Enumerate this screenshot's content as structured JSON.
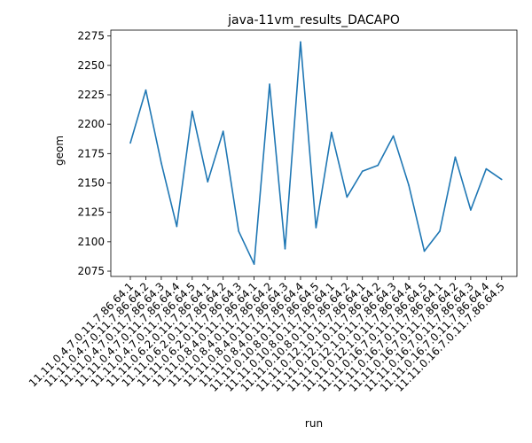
{
  "chart_data": {
    "type": "line",
    "title": "java-11vm_results_DACAPO",
    "xlabel": "run",
    "ylabel": "geom",
    "categories": [
      "11.11.0.4.7.0.11.7.86.64.1",
      "11.11.0.4.7.0.11.7.86.64.2",
      "11.11.0.4.7.0.11.7.86.64.3",
      "11.11.0.4.7.0.11.7.86.64.4",
      "11.11.0.4.7.0.11.7.86.64.5",
      "11.11.0.6.2.0.11.7.86.64.1",
      "11.11.0.6.2.0.11.7.86.64.2",
      "11.11.0.6.2.0.11.7.86.64.3",
      "11.11.0.8.4.0.11.7.86.64.1",
      "11.11.0.8.4.0.11.7.86.64.2",
      "11.11.0.8.4.0.11.7.86.64.3",
      "11.11.0.8.4.0.11.7.86.64.4",
      "11.11.0.10.8.0.11.7.86.64.5",
      "11.11.0.10.8.0.11.7.86.64.1",
      "11.11.0.10.8.0.11.7.86.64.2",
      "11.11.0.12.1.0.11.7.86.64.1",
      "11.11.0.12.1.0.11.7.86.64.2",
      "11.11.0.12.1.0.11.7.86.64.3",
      "11.11.0.12.1.0.11.7.86.64.4",
      "11.11.0.16.7.0.11.7.86.64.5",
      "11.11.0.16.7.0.11.7.86.64.1",
      "11.11.0.16.7.0.11.7.86.64.2",
      "11.11.0.16.7.0.11.7.86.64.3",
      "11.11.0.16.7.0.11.7.86.64.4",
      "11.11.0.16.7.0.11.7.86.64.5"
    ],
    "values": [
      2184,
      2229,
      2167,
      2113,
      2211,
      2151,
      2194,
      2109,
      2081,
      2234,
      2094,
      2270,
      2112,
      2193,
      2138,
      2160,
      2165,
      2190,
      2148,
      2092,
      2109,
      2172,
      2127,
      2162,
      2153
    ],
    "yticks": [
      2075,
      2100,
      2125,
      2150,
      2175,
      2200,
      2225,
      2250,
      2275
    ],
    "ylim": [
      2070.5,
      2280
    ],
    "grid": false,
    "line_color": "#1f77b4"
  }
}
